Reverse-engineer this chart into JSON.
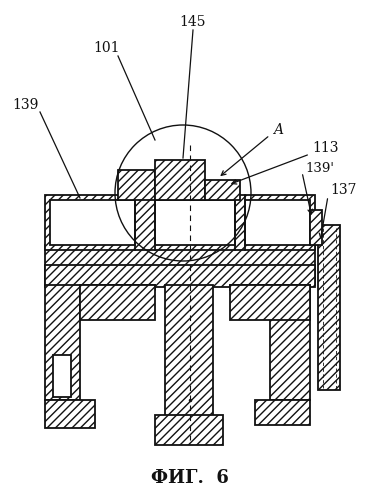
{
  "bg_color": "#ffffff",
  "line_color": "#111111",
  "fig_label": "ФИГ.  6",
  "fig_fontsize": 13
}
